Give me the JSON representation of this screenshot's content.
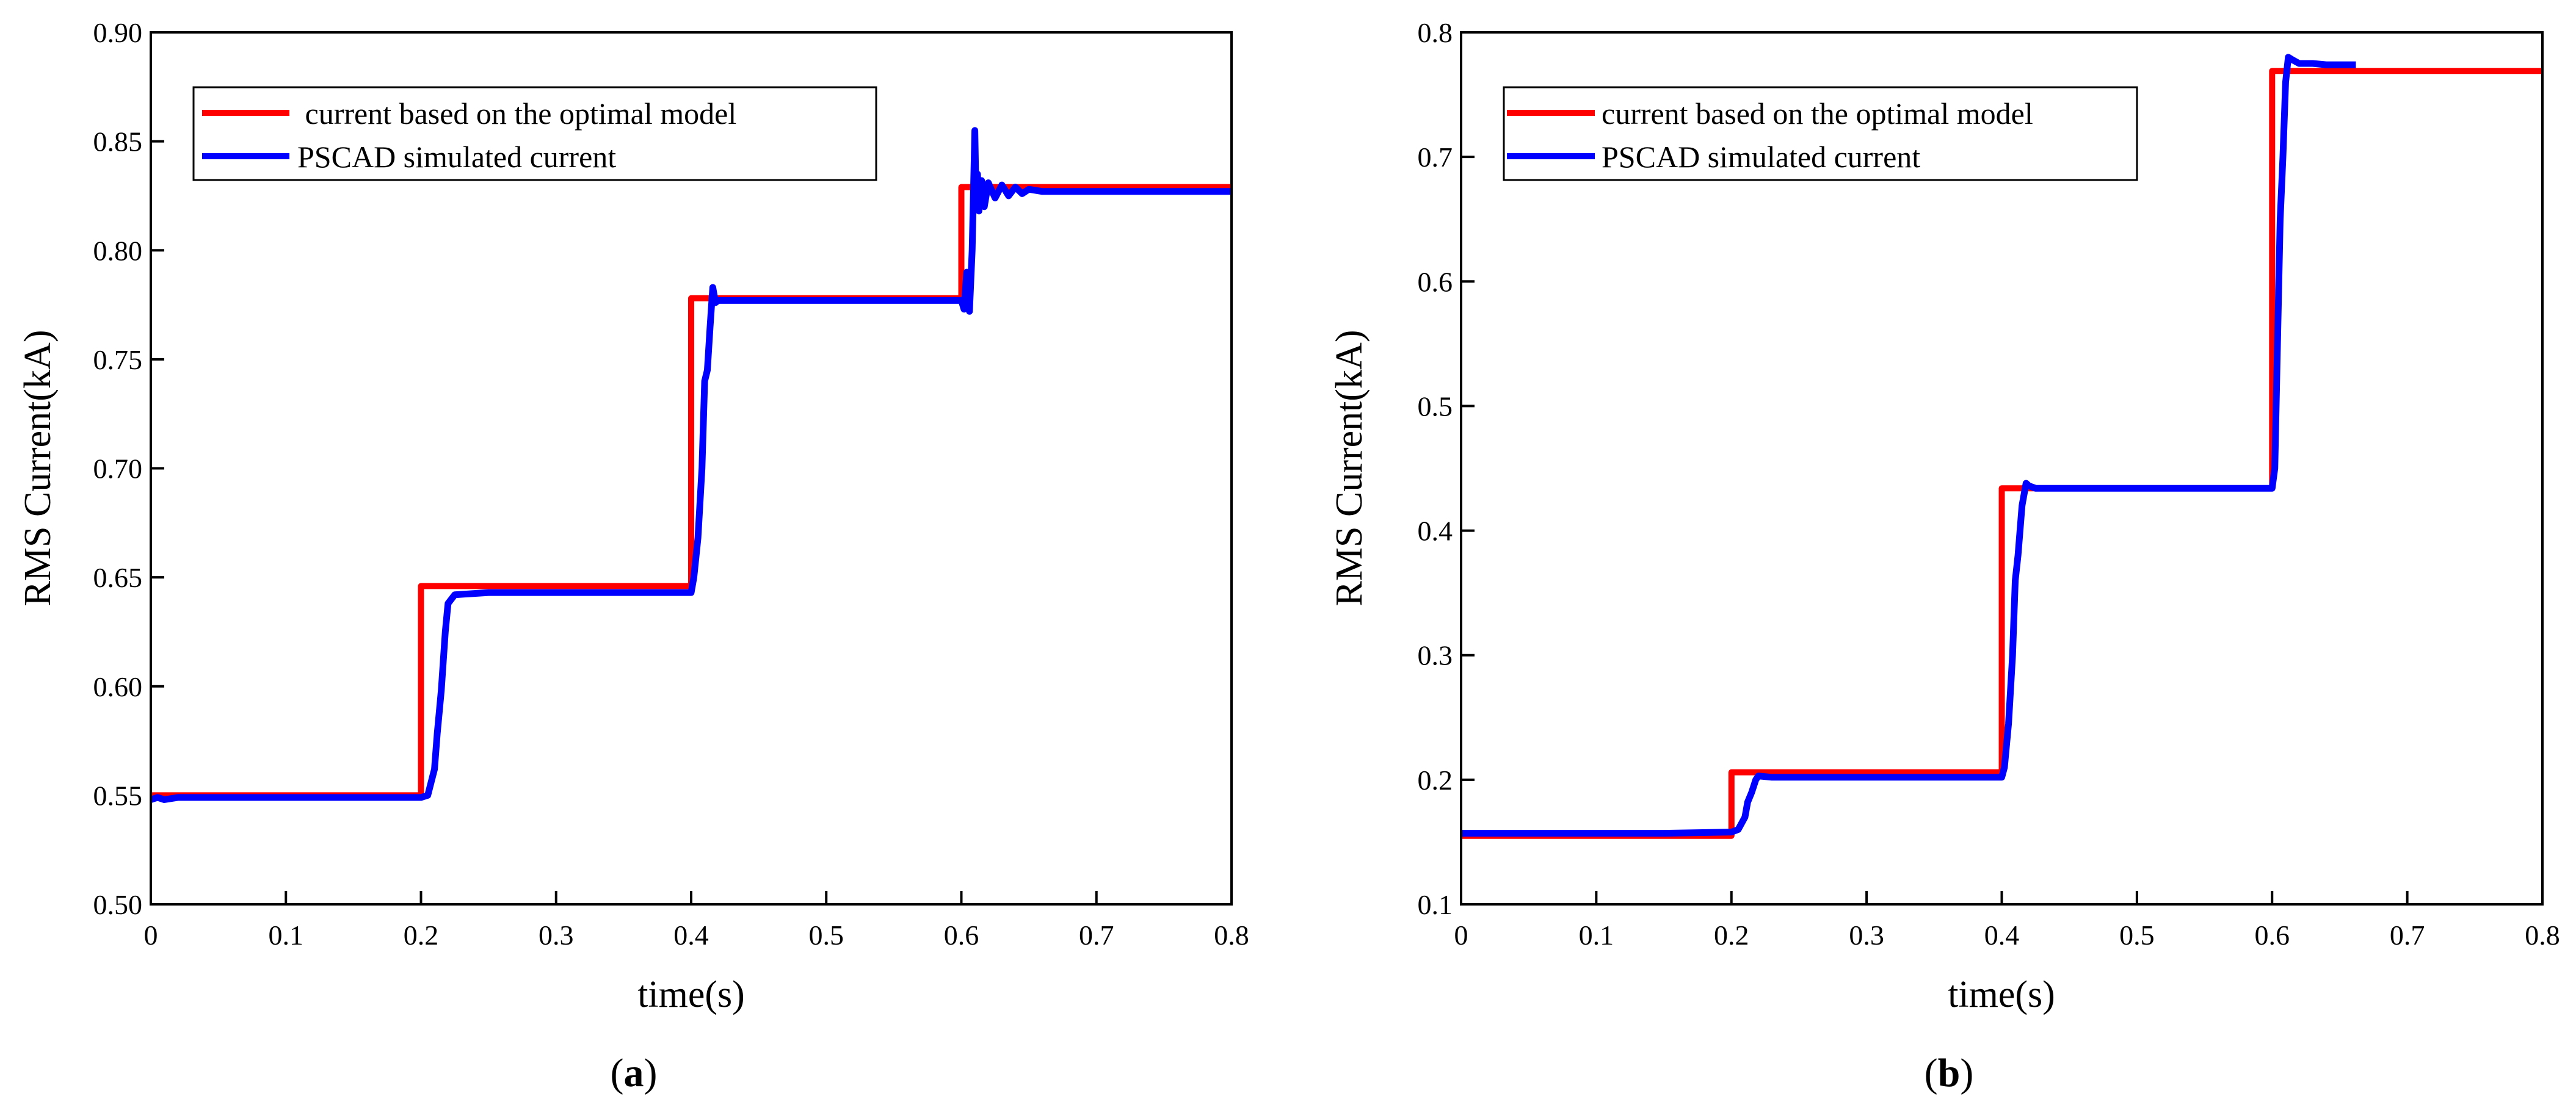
{
  "chart_data": [
    {
      "type": "line",
      "panel": "a",
      "panel_label_open": "(",
      "panel_label_letter": "a",
      "panel_label_close": ")",
      "xlabel": "time(s)",
      "ylabel": "RMS Current(kA)",
      "xlim": [
        0,
        0.8
      ],
      "ylim": [
        0.5,
        0.9
      ],
      "xticks": [
        0,
        0.1,
        0.2,
        0.3,
        0.4,
        0.5,
        0.6,
        0.7,
        0.8
      ],
      "xtick_labels": [
        "0",
        "0.1",
        "0.2",
        "0.3",
        "0.4",
        "0.5",
        "0.6",
        "0.7",
        "0.8"
      ],
      "yticks": [
        0.5,
        0.55,
        0.6,
        0.65,
        0.7,
        0.75,
        0.8,
        0.85,
        0.9
      ],
      "ytick_labels": [
        "0.50",
        "0.55",
        "0.60",
        "0.65",
        "0.70",
        "0.75",
        "0.80",
        "0.85",
        "0.90"
      ],
      "legend_position": "top-left",
      "series": [
        {
          "name": " current based on the optimal model",
          "color": "#ff0000",
          "x": [
            0,
            0.2,
            0.2,
            0.4,
            0.4,
            0.6,
            0.6,
            0.8
          ],
          "y": [
            0.55,
            0.55,
            0.646,
            0.646,
            0.778,
            0.778,
            0.829,
            0.829
          ]
        },
        {
          "name": "PSCAD simulated current",
          "color": "#0000ff",
          "x": [
            0,
            0.005,
            0.01,
            0.02,
            0.05,
            0.1,
            0.15,
            0.2,
            0.205,
            0.21,
            0.212,
            0.215,
            0.218,
            0.22,
            0.225,
            0.25,
            0.3,
            0.35,
            0.4,
            0.402,
            0.405,
            0.408,
            0.41,
            0.412,
            0.414,
            0.416,
            0.418,
            0.42,
            0.43,
            0.5,
            0.55,
            0.6,
            0.602,
            0.604,
            0.606,
            0.608,
            0.61,
            0.611,
            0.612,
            0.613,
            0.615,
            0.617,
            0.62,
            0.625,
            0.63,
            0.635,
            0.64,
            0.645,
            0.65,
            0.66,
            0.7,
            0.8
          ],
          "y": [
            0.548,
            0.549,
            0.548,
            0.549,
            0.549,
            0.549,
            0.549,
            0.549,
            0.55,
            0.562,
            0.578,
            0.598,
            0.625,
            0.638,
            0.642,
            0.643,
            0.643,
            0.643,
            0.643,
            0.65,
            0.668,
            0.7,
            0.74,
            0.745,
            0.765,
            0.783,
            0.776,
            0.777,
            0.777,
            0.777,
            0.777,
            0.777,
            0.773,
            0.79,
            0.772,
            0.8,
            0.855,
            0.82,
            0.835,
            0.818,
            0.832,
            0.82,
            0.831,
            0.824,
            0.83,
            0.825,
            0.829,
            0.826,
            0.828,
            0.827,
            0.827,
            0.827
          ]
        }
      ]
    },
    {
      "type": "line",
      "panel": "b",
      "panel_label_open": "(",
      "panel_label_letter": "b",
      "panel_label_close": ")",
      "xlabel": "time(s)",
      "ylabel": "RMS Current(kA)",
      "xlim": [
        0,
        0.8
      ],
      "ylim": [
        0.1,
        0.8
      ],
      "xticks": [
        0,
        0.1,
        0.2,
        0.3,
        0.4,
        0.5,
        0.6,
        0.7,
        0.8
      ],
      "xtick_labels": [
        "0",
        "0.1",
        "0.2",
        "0.3",
        "0.4",
        "0.5",
        "0.6",
        "0.7",
        "0.8"
      ],
      "yticks": [
        0.1,
        0.2,
        0.3,
        0.4,
        0.5,
        0.6,
        0.7,
        0.8
      ],
      "ytick_labels": [
        "0.1",
        "0.2",
        "0.3",
        "0.4",
        "0.5",
        "0.6",
        "0.7",
        "0.8"
      ],
      "legend_position": "top-left",
      "series": [
        {
          "name": "current based on the optimal model",
          "color": "#ff0000",
          "x": [
            0,
            0.2,
            0.2,
            0.4,
            0.4,
            0.6,
            0.6,
            0.8
          ],
          "y": [
            0.155,
            0.155,
            0.206,
            0.206,
            0.434,
            0.434,
            0.769,
            0.769
          ]
        },
        {
          "name": "PSCAD simulated current",
          "color": "#0000ff",
          "x": [
            0,
            0.05,
            0.1,
            0.15,
            0.2,
            0.205,
            0.21,
            0.212,
            0.215,
            0.218,
            0.22,
            0.23,
            0.3,
            0.35,
            0.4,
            0.402,
            0.405,
            0.408,
            0.41,
            0.412,
            0.415,
            0.418,
            0.42,
            0.425,
            0.43,
            0.5,
            0.55,
            0.6,
            0.602,
            0.604,
            0.606,
            0.608,
            0.61,
            0.612,
            0.615,
            0.62,
            0.63,
            0.64,
            0.65,
            0.662
          ],
          "y": [
            0.157,
            0.157,
            0.157,
            0.157,
            0.158,
            0.16,
            0.17,
            0.182,
            0.19,
            0.2,
            0.203,
            0.202,
            0.202,
            0.202,
            0.202,
            0.21,
            0.245,
            0.3,
            0.36,
            0.38,
            0.42,
            0.438,
            0.436,
            0.434,
            0.434,
            0.434,
            0.434,
            0.434,
            0.45,
            0.55,
            0.65,
            0.7,
            0.76,
            0.78,
            0.778,
            0.775,
            0.775,
            0.774,
            0.774,
            0.774
          ]
        }
      ]
    }
  ]
}
